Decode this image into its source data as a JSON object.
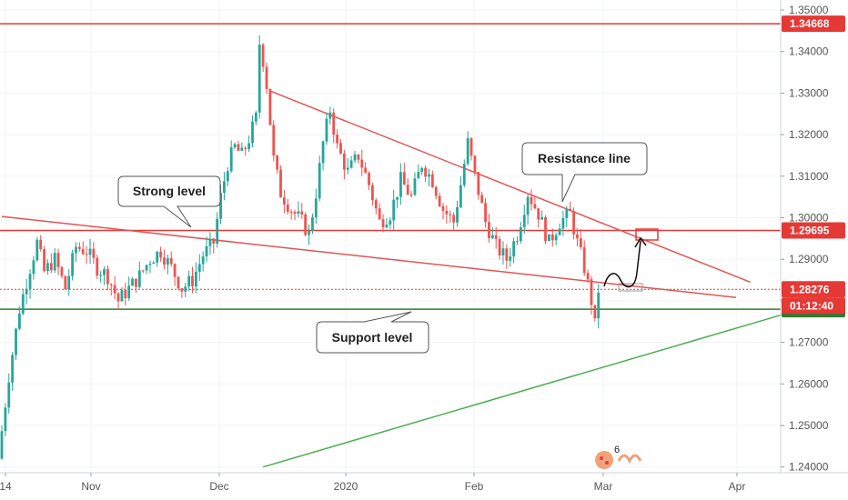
{
  "chart_data": {
    "type": "candlestick",
    "price_axis": {
      "min": 1.236,
      "max": 1.352,
      "ticks": [
        "1.35000",
        "1.34000",
        "1.33000",
        "1.32000",
        "1.31000",
        "1.30000",
        "1.29000",
        "1.28000",
        "1.27000",
        "1.26000",
        "1.25000",
        "1.24000"
      ]
    },
    "time_axis": {
      "labels": [
        "14",
        "Nov",
        "Dec",
        "2020",
        "Feb",
        "Mar",
        "Apr"
      ]
    },
    "grid": true,
    "colors": {
      "up": "#26a69a",
      "down": "#ef5350",
      "resistance": "#e05555",
      "support": "#4caf50",
      "level_red": "#e53935",
      "level_green": "#2e7d32"
    },
    "series_points": [
      {
        "t": 0,
        "p": 1.242
      },
      {
        "t": 3,
        "p": 1.262
      },
      {
        "t": 6,
        "p": 1.278
      },
      {
        "t": 9,
        "p": 1.288
      },
      {
        "t": 11,
        "p": 1.294
      },
      {
        "t": 13,
        "p": 1.287
      },
      {
        "t": 16,
        "p": 1.29
      },
      {
        "t": 19,
        "p": 1.283
      },
      {
        "t": 22,
        "p": 1.293
      },
      {
        "t": 25,
        "p": 1.292
      },
      {
        "t": 28,
        "p": 1.288
      },
      {
        "t": 31,
        "p": 1.286
      },
      {
        "t": 34,
        "p": 1.28
      },
      {
        "t": 37,
        "p": 1.283
      },
      {
        "t": 40,
        "p": 1.286
      },
      {
        "t": 43,
        "p": 1.29
      },
      {
        "t": 46,
        "p": 1.292
      },
      {
        "t": 49,
        "p": 1.288
      },
      {
        "t": 52,
        "p": 1.283
      },
      {
        "t": 55,
        "p": 1.285
      },
      {
        "t": 58,
        "p": 1.291
      },
      {
        "t": 61,
        "p": 1.294
      },
      {
        "t": 63,
        "p": 1.305
      },
      {
        "t": 65,
        "p": 1.313
      },
      {
        "t": 67,
        "p": 1.317
      },
      {
        "t": 69,
        "p": 1.315
      },
      {
        "t": 71,
        "p": 1.319
      },
      {
        "t": 73,
        "p": 1.324
      },
      {
        "t": 74,
        "p": 1.342
      },
      {
        "t": 75,
        "p": 1.338
      },
      {
        "t": 76,
        "p": 1.332
      },
      {
        "t": 78,
        "p": 1.314
      },
      {
        "t": 80,
        "p": 1.306
      },
      {
        "t": 83,
        "p": 1.302
      },
      {
        "t": 86,
        "p": 1.299
      },
      {
        "t": 88,
        "p": 1.296
      },
      {
        "t": 90,
        "p": 1.306
      },
      {
        "t": 92,
        "p": 1.318
      },
      {
        "t": 94,
        "p": 1.326
      },
      {
        "t": 96,
        "p": 1.317
      },
      {
        "t": 99,
        "p": 1.311
      },
      {
        "t": 102,
        "p": 1.315
      },
      {
        "t": 105,
        "p": 1.308
      },
      {
        "t": 108,
        "p": 1.299
      },
      {
        "t": 111,
        "p": 1.301
      },
      {
        "t": 114,
        "p": 1.309
      },
      {
        "t": 117,
        "p": 1.305
      },
      {
        "t": 120,
        "p": 1.313
      },
      {
        "t": 123,
        "p": 1.309
      },
      {
        "t": 126,
        "p": 1.302
      },
      {
        "t": 129,
        "p": 1.299
      },
      {
        "t": 131,
        "p": 1.308
      },
      {
        "t": 133,
        "p": 1.318
      },
      {
        "t": 135,
        "p": 1.31
      },
      {
        "t": 138,
        "p": 1.299
      },
      {
        "t": 141,
        "p": 1.293
      },
      {
        "t": 144,
        "p": 1.29
      },
      {
        "t": 147,
        "p": 1.296
      },
      {
        "t": 150,
        "p": 1.306
      },
      {
        "t": 153,
        "p": 1.301
      },
      {
        "t": 156,
        "p": 1.294
      },
      {
        "t": 159,
        "p": 1.299
      },
      {
        "t": 162,
        "p": 1.301
      },
      {
        "t": 164,
        "p": 1.294
      },
      {
        "t": 166,
        "p": 1.288
      },
      {
        "t": 168,
        "p": 1.28
      },
      {
        "t": 169,
        "p": 1.274
      },
      {
        "t": 170,
        "p": 1.2827
      }
    ],
    "levels": [
      {
        "price": 1.34668,
        "label": "1.34668",
        "color": "level_red",
        "style": "solid"
      },
      {
        "price": 1.29695,
        "label": "1.29695",
        "color": "level_red",
        "style": "solid"
      },
      {
        "price": 1.28276,
        "label": "1.28276",
        "color": "level_red",
        "style": "dotted"
      },
      {
        "price": 1.27797,
        "label": "1.27797",
        "color": "level_green",
        "style": "solid"
      }
    ],
    "countdown": "01:12:40",
    "trendlines": [
      {
        "name": "resistance",
        "from": {
          "t": 76,
          "p": 1.3305
        },
        "to": {
          "t": 212,
          "p": 1.2845
        },
        "color": "resistance"
      },
      {
        "name": "strong",
        "from": {
          "t": 0,
          "p": 1.3003
        },
        "to": {
          "t": 208,
          "p": 1.2808
        },
        "color": "resistance"
      },
      {
        "name": "support",
        "from": {
          "t": 74,
          "p": 1.24
        },
        "to": {
          "t": 222,
          "p": 1.2769
        },
        "color": "support"
      }
    ],
    "annotations": [
      {
        "text": "Strong level"
      },
      {
        "text": "Resistance line"
      },
      {
        "text": "Support level"
      }
    ],
    "footer_badge": "6"
  }
}
